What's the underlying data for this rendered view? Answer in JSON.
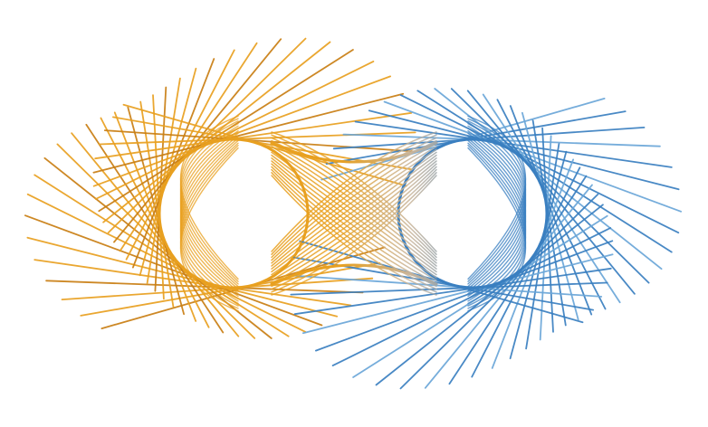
{
  "artwork": {
    "subject": "infinity-symbol-string-art",
    "palette": {
      "left": "#e8a020",
      "left_dark": "#c97e12",
      "middle": "#c8b49a",
      "right": "#3a7fc0",
      "right_light": "#6aa6d8",
      "background": "#ffffff"
    },
    "loops": 2,
    "strands_per_loop": 36
  }
}
